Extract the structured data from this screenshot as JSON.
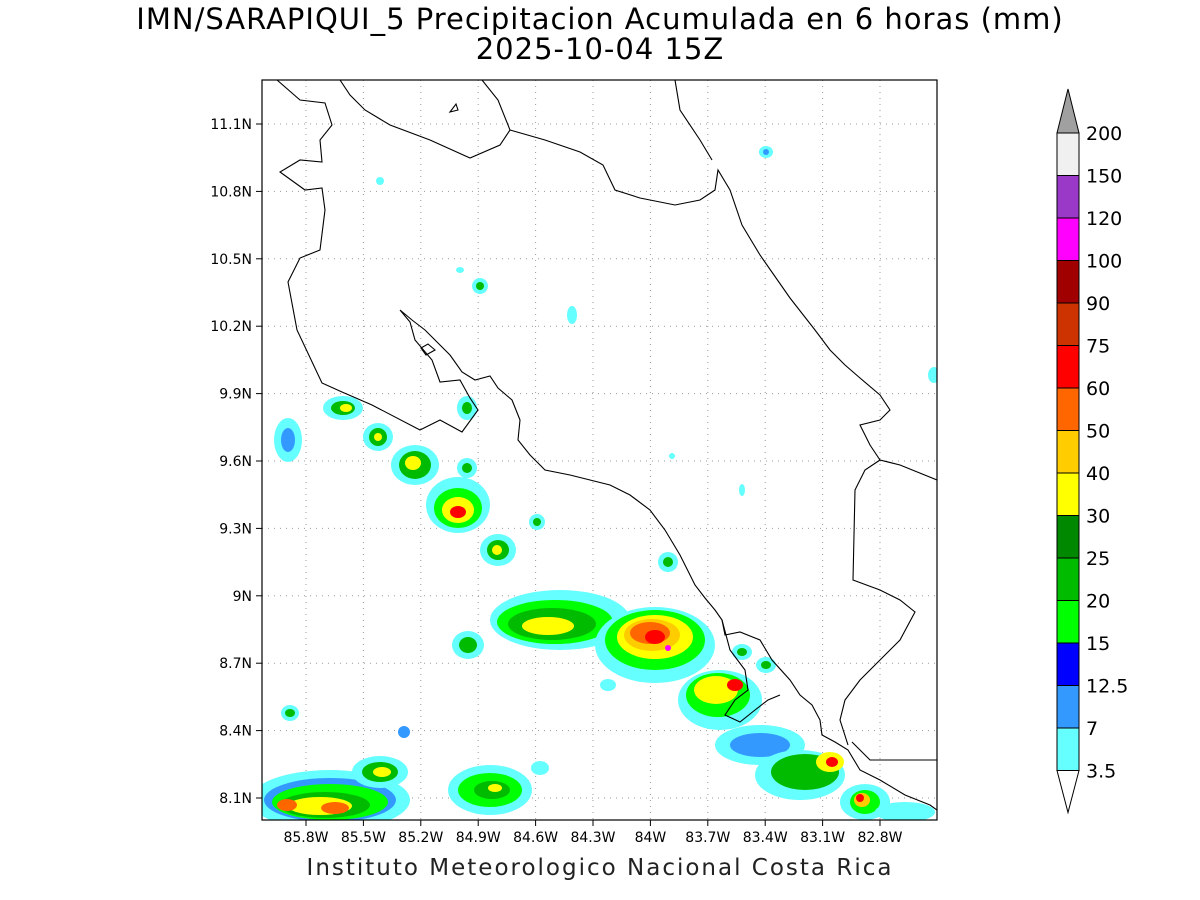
{
  "title": {
    "line1": "IMN/SARAPIQUI_5 Precipitacion Acumulada en 6 horas (mm)",
    "line2": "2025-10-04 15Z"
  },
  "footer": "Instituto Meteorologico Nacional Costa Rica",
  "map": {
    "lat_ticks": [
      "11.1N",
      "10.8N",
      "10.5N",
      "10.2N",
      "9.9N",
      "9.6N",
      "9.3N",
      "9N",
      "8.7N",
      "8.4N",
      "8.1N"
    ],
    "lon_ticks": [
      "85.8W",
      "85.5W",
      "85.2W",
      "84.9W",
      "84.6W",
      "84.3W",
      "84W",
      "83.7W",
      "83.4W",
      "83.1W",
      "82.8W"
    ],
    "grid": "dotted",
    "projection": "lat-lon"
  },
  "colorbar": {
    "labels": [
      "200",
      "150",
      "120",
      "100",
      "90",
      "75",
      "60",
      "50",
      "40",
      "30",
      "25",
      "20",
      "15",
      "12.5",
      "7",
      "3.5"
    ],
    "colors": [
      "#a0a0a0",
      "#f0f0f0",
      "#9a38c8",
      "#ff00ff",
      "#a00000",
      "#cc3300",
      "#ff0000",
      "#ff6600",
      "#ffcc00",
      "#ffff00",
      "#008800",
      "#00bb00",
      "#00ff00",
      "#0000ff",
      "#3399ff",
      "#66ffff"
    ]
  }
}
